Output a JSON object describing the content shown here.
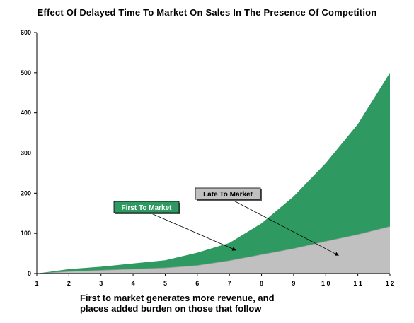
{
  "chart_data": {
    "type": "area",
    "stacked": true,
    "title": "Effect Of Delayed Time To Market On Sales In The Presence Of Competition",
    "xlabel": "",
    "ylabel": "",
    "x": [
      1,
      2,
      3,
      4,
      5,
      6,
      7,
      8,
      9,
      10,
      11,
      12
    ],
    "xlim": [
      1,
      12
    ],
    "ylim": [
      0,
      600
    ],
    "yticks": [
      0,
      100,
      200,
      300,
      400,
      500,
      600
    ],
    "grid": false,
    "series": [
      {
        "values": [
          0,
          5,
          8,
          11,
          14,
          20,
          32,
          47,
          62,
          80,
          97,
          117
        ],
        "color": "#c0c0c0"
      },
      {
        "values": [
          0,
          6,
          9,
          14,
          19,
          32,
          44,
          78,
          130,
          195,
          275,
          383
        ],
        "color": "#2e9a62"
      }
    ],
    "annotations": [
      {
        "label": "Late To Market",
        "box_color": "#c0c0c0",
        "text_color": "#000000",
        "points_to": {
          "x": 10.4,
          "y": 45
        }
      },
      {
        "label": "First To Market",
        "box_color": "#2e9a62",
        "text_color": "#ffffff",
        "points_to": {
          "x": 7.2,
          "y": 58
        }
      }
    ]
  },
  "caption": {
    "line1": "First to market generates more revenue, and",
    "line2": "places added burden on those that follow"
  }
}
